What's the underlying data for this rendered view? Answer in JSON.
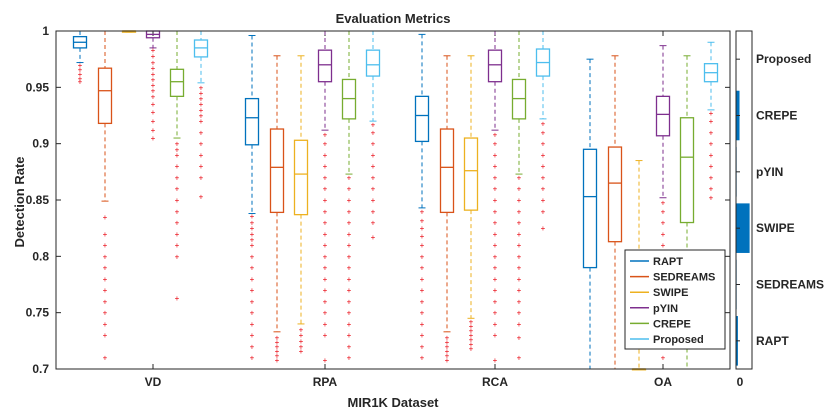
{
  "chart_data": {
    "type": "boxplot",
    "title": "Evaluation Metrics",
    "xlabel": "MIR1K Dataset",
    "ylabel": "Detection Rate",
    "ylim": [
      0.7,
      1.0
    ],
    "yticks": [
      0.7,
      0.75,
      0.8,
      0.85,
      0.9,
      0.95,
      1
    ],
    "ytick_labels": [
      "0.7",
      "0.75",
      "0.8",
      "0.85",
      "0.9",
      "0.95",
      "1"
    ],
    "categories": [
      "VD",
      "RPA",
      "RCA",
      "OA"
    ],
    "legend_position": "bottom-right",
    "series": [
      {
        "name": "RAPT",
        "color": "#0072BD",
        "boxes": [
          {
            "whislo": 0.972,
            "q1": 0.985,
            "med": 0.99,
            "q3": 0.995,
            "whishi": 1.0,
            "fliers": [
              0.97,
              0.966,
              0.962,
              0.958,
              0.955
            ]
          },
          {
            "whislo": 0.838,
            "q1": 0.899,
            "med": 0.923,
            "q3": 0.94,
            "whishi": 0.996,
            "fliers": [
              0.836,
              0.83,
              0.825,
              0.82,
              0.815,
              0.81,
              0.8,
              0.79,
              0.78,
              0.77,
              0.76,
              0.75,
              0.74,
              0.73,
              0.72,
              0.71
            ]
          },
          {
            "whislo": 0.843,
            "q1": 0.902,
            "med": 0.925,
            "q3": 0.942,
            "whishi": 0.997,
            "fliers": [
              0.84,
              0.832,
              0.825,
              0.818,
              0.81,
              0.8,
              0.79,
              0.78,
              0.77,
              0.76,
              0.75,
              0.74,
              0.73,
              0.72,
              0.71
            ]
          },
          {
            "whislo": 0.7,
            "q1": 0.79,
            "med": 0.853,
            "q3": 0.895,
            "whishi": 0.975,
            "fliers": []
          }
        ]
      },
      {
        "name": "SEDREAMS",
        "color": "#D95319",
        "boxes": [
          {
            "whislo": 0.849,
            "q1": 0.918,
            "med": 0.947,
            "q3": 0.967,
            "whishi": 1.0,
            "fliers": [
              0.835,
              0.82,
              0.81,
              0.8,
              0.79,
              0.78,
              0.77,
              0.76,
              0.75,
              0.74,
              0.73,
              0.71
            ]
          },
          {
            "whislo": 0.733,
            "q1": 0.839,
            "med": 0.879,
            "q3": 0.913,
            "whishi": 0.978,
            "fliers": [
              0.728,
              0.724,
              0.72,
              0.716,
              0.712,
              0.708
            ]
          },
          {
            "whislo": 0.733,
            "q1": 0.839,
            "med": 0.879,
            "q3": 0.913,
            "whishi": 0.978,
            "fliers": [
              0.728,
              0.724,
              0.72,
              0.716,
              0.712,
              0.708
            ]
          },
          {
            "whislo": 0.7,
            "q1": 0.813,
            "med": 0.865,
            "q3": 0.897,
            "whishi": 0.978,
            "fliers": []
          }
        ]
      },
      {
        "name": "SWIPE",
        "color": "#EDB120",
        "boxes": [
          {
            "whislo": 0.999,
            "q1": 0.999,
            "med": 1.0,
            "q3": 1.0,
            "whishi": 1.0,
            "fliers": []
          },
          {
            "whislo": 0.74,
            "q1": 0.837,
            "med": 0.873,
            "q3": 0.903,
            "whishi": 0.978,
            "fliers": [
              0.735,
              0.73,
              0.725,
              0.72,
              0.716
            ]
          },
          {
            "whislo": 0.745,
            "q1": 0.841,
            "med": 0.876,
            "q3": 0.905,
            "whishi": 0.978,
            "fliers": [
              0.742,
              0.738,
              0.734,
              0.73,
              0.726,
              0.722,
              0.718
            ]
          },
          {
            "whislo": 0.7,
            "q1": 0.7,
            "med": 0.7,
            "q3": 0.7,
            "whishi": 0.885,
            "fliers": []
          }
        ]
      },
      {
        "name": "pYIN",
        "color": "#7E2F8E",
        "boxes": [
          {
            "whislo": 0.985,
            "q1": 0.994,
            "med": 0.997,
            "q3": 1.0,
            "whishi": 1.0,
            "fliers": [
              0.983,
              0.978,
              0.972,
              0.967,
              0.962,
              0.957,
              0.952,
              0.947,
              0.942,
              0.935,
              0.928,
              0.92,
              0.912,
              0.905
            ]
          },
          {
            "whislo": 0.912,
            "q1": 0.955,
            "med": 0.97,
            "q3": 0.983,
            "whishi": 1.0,
            "fliers": [
              0.908,
              0.9,
              0.89,
              0.88,
              0.87,
              0.86,
              0.85,
              0.84,
              0.83,
              0.82,
              0.81,
              0.8,
              0.79,
              0.78,
              0.77,
              0.76,
              0.75,
              0.74,
              0.73,
              0.708
            ]
          },
          {
            "whislo": 0.912,
            "q1": 0.955,
            "med": 0.97,
            "q3": 0.983,
            "whishi": 1.0,
            "fliers": [
              0.908,
              0.9,
              0.89,
              0.88,
              0.87,
              0.86,
              0.85,
              0.84,
              0.83,
              0.82,
              0.81,
              0.8,
              0.79,
              0.78,
              0.77,
              0.76,
              0.75,
              0.74,
              0.73,
              0.708
            ]
          },
          {
            "whislo": 0.852,
            "q1": 0.907,
            "med": 0.926,
            "q3": 0.942,
            "whishi": 0.987,
            "fliers": [
              0.848,
              0.84,
              0.83,
              0.82,
              0.81,
              0.8,
              0.79,
              0.78,
              0.77,
              0.76,
              0.75,
              0.74,
              0.73,
              0.72,
              0.71
            ]
          }
        ]
      },
      {
        "name": "CREPE",
        "color": "#77AC30",
        "boxes": [
          {
            "whislo": 0.905,
            "q1": 0.942,
            "med": 0.955,
            "q3": 0.966,
            "whishi": 1.0,
            "fliers": [
              0.9,
              0.895,
              0.89,
              0.88,
              0.87,
              0.86,
              0.85,
              0.84,
              0.83,
              0.82,
              0.81,
              0.8,
              0.763
            ]
          },
          {
            "whislo": 0.873,
            "q1": 0.922,
            "med": 0.94,
            "q3": 0.957,
            "whishi": 1.0,
            "fliers": [
              0.87,
              0.86,
              0.85,
              0.84,
              0.83,
              0.82,
              0.81,
              0.8,
              0.79,
              0.78,
              0.77,
              0.76,
              0.75,
              0.74,
              0.73,
              0.72,
              0.71
            ]
          },
          {
            "whislo": 0.873,
            "q1": 0.922,
            "med": 0.94,
            "q3": 0.957,
            "whishi": 1.0,
            "fliers": [
              0.87,
              0.86,
              0.85,
              0.84,
              0.83,
              0.82,
              0.81,
              0.8,
              0.79,
              0.78,
              0.77,
              0.76,
              0.75,
              0.74,
              0.728,
              0.71
            ]
          },
          {
            "whislo": 0.7,
            "q1": 0.83,
            "med": 0.888,
            "q3": 0.923,
            "whishi": 0.978,
            "fliers": []
          }
        ]
      },
      {
        "name": "Proposed",
        "color": "#4DBEEE",
        "boxes": [
          {
            "whislo": 0.954,
            "q1": 0.977,
            "med": 0.985,
            "q3": 0.992,
            "whishi": 1.0,
            "fliers": [
              0.95,
              0.945,
              0.94,
              0.935,
              0.93,
              0.925,
              0.92,
              0.91,
              0.9,
              0.89,
              0.88,
              0.87,
              0.853
            ]
          },
          {
            "whislo": 0.92,
            "q1": 0.96,
            "med": 0.97,
            "q3": 0.983,
            "whishi": 1.0,
            "fliers": [
              0.917,
              0.91,
              0.9,
              0.89,
              0.88,
              0.87,
              0.86,
              0.85,
              0.84,
              0.83,
              0.817
            ]
          },
          {
            "whislo": 0.922,
            "q1": 0.96,
            "med": 0.972,
            "q3": 0.984,
            "whishi": 1.0,
            "fliers": [
              0.918,
              0.91,
              0.9,
              0.89,
              0.88,
              0.87,
              0.86,
              0.85,
              0.84,
              0.825
            ]
          },
          {
            "whislo": 0.93,
            "q1": 0.955,
            "med": 0.963,
            "q3": 0.971,
            "whishi": 0.99,
            "fliers": [
              0.927,
              0.92,
              0.91,
              0.9,
              0.89,
              0.88,
              0.87,
              0.86,
              0.852
            ]
          }
        ]
      }
    ],
    "side_panel": {
      "colorbar_color": "#0072BD",
      "xtick_label": "0",
      "labels": [
        "RAPT",
        "SEDREAMS",
        "SWIPE",
        "pYIN",
        "CREPE",
        "Proposed"
      ],
      "values": [
        0.12,
        0.04,
        0.85,
        0.04,
        0.22,
        0.0
      ]
    }
  }
}
